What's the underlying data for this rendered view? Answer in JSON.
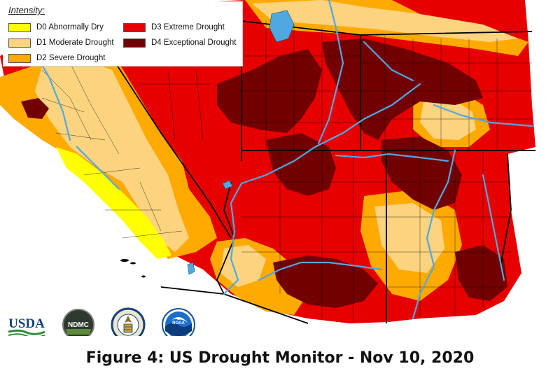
{
  "legend": {
    "title": "Intensity:",
    "items": [
      {
        "code": "D0",
        "label": "D0 Abnormally Dry",
        "color": "#FFFF00"
      },
      {
        "code": "D1",
        "label": "D1 Moderate Drought",
        "color": "#FCD37F"
      },
      {
        "code": "D2",
        "label": "D2 Severe Drought",
        "color": "#FFAA00"
      },
      {
        "code": "D3",
        "label": "D3 Extreme Drought",
        "color": "#E60000"
      },
      {
        "code": "D4",
        "label": "D4 Exceptional Drought",
        "color": "#730000"
      }
    ]
  },
  "map": {
    "water_color": "#4FA8E0",
    "border_color": "#000000",
    "none_color": "#FFFFFF"
  },
  "logos": [
    {
      "name": "usda-logo",
      "text": "USDA"
    },
    {
      "name": "ndmc-logo",
      "text": "NDMC"
    },
    {
      "name": "doc-seal",
      "text": ""
    },
    {
      "name": "noaa-logo",
      "text": "NOAA"
    }
  ],
  "caption": "Figure 4: US Drought Monitor - Nov 10, 2020"
}
